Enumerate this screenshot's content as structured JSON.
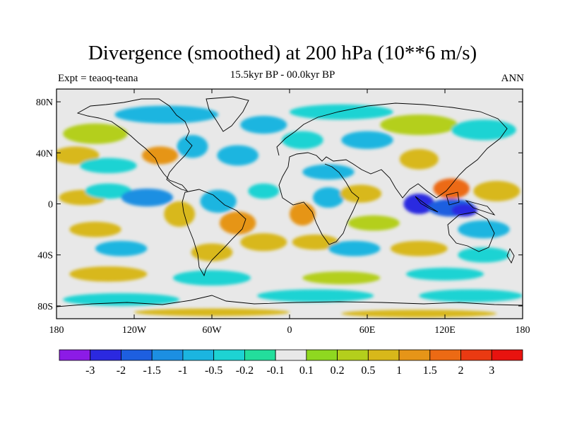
{
  "figure": {
    "title": "Divergence (smoothed) at 200 hPa (10**6 m/s)",
    "subtitle": "15.5kyr BP - 00.0kyr BP",
    "left_label": "Expt = teaoq-teana",
    "right_label": "ANN"
  },
  "map": {
    "lon_range": [
      -180,
      180
    ],
    "lat_range": [
      -90,
      90
    ],
    "lat_ticks": [
      {
        "value": 80,
        "label": "80N"
      },
      {
        "value": 40,
        "label": "40N"
      },
      {
        "value": 0,
        "label": "0"
      },
      {
        "value": -40,
        "label": "40S"
      },
      {
        "value": -80,
        "label": "80S"
      }
    ],
    "lon_ticks": [
      {
        "value": -180,
        "label": "180"
      },
      {
        "value": -120,
        "label": "120W"
      },
      {
        "value": -60,
        "label": "60W"
      },
      {
        "value": 0,
        "label": "0"
      },
      {
        "value": 60,
        "label": "60E"
      },
      {
        "value": 120,
        "label": "120E"
      },
      {
        "value": 180,
        "label": "180"
      }
    ],
    "anomalies": [
      {
        "lon": -150,
        "lat": 55,
        "rx": 25,
        "ry": 8,
        "value": 0.3
      },
      {
        "lon": -165,
        "lat": 38,
        "rx": 18,
        "ry": 7,
        "value": 0.8
      },
      {
        "lon": -140,
        "lat": 30,
        "rx": 22,
        "ry": 6,
        "value": -0.3
      },
      {
        "lon": -100,
        "lat": 38,
        "rx": 14,
        "ry": 7,
        "value": 1.2
      },
      {
        "lon": -75,
        "lat": 45,
        "rx": 12,
        "ry": 9,
        "value": -1.0
      },
      {
        "lon": -95,
        "lat": 70,
        "rx": 40,
        "ry": 7,
        "value": -0.6
      },
      {
        "lon": -20,
        "lat": 62,
        "rx": 18,
        "ry": 7,
        "value": -0.8
      },
      {
        "lon": 40,
        "lat": 72,
        "rx": 40,
        "ry": 6,
        "value": -0.5
      },
      {
        "lon": 100,
        "lat": 62,
        "rx": 30,
        "ry": 8,
        "value": 0.4
      },
      {
        "lon": 150,
        "lat": 58,
        "rx": 25,
        "ry": 8,
        "value": -0.5
      },
      {
        "lon": -40,
        "lat": 38,
        "rx": 16,
        "ry": 8,
        "value": -0.6
      },
      {
        "lon": 10,
        "lat": 50,
        "rx": 16,
        "ry": 7,
        "value": -0.4
      },
      {
        "lon": 60,
        "lat": 50,
        "rx": 20,
        "ry": 7,
        "value": -0.7
      },
      {
        "lon": 100,
        "lat": 35,
        "rx": 15,
        "ry": 8,
        "value": 0.5
      },
      {
        "lon": 30,
        "lat": 25,
        "rx": 20,
        "ry": 6,
        "value": -0.6
      },
      {
        "lon": -160,
        "lat": 5,
        "rx": 18,
        "ry": 6,
        "value": 0.7
      },
      {
        "lon": -140,
        "lat": 10,
        "rx": 18,
        "ry": 6,
        "value": -0.4
      },
      {
        "lon": -110,
        "lat": 5,
        "rx": 20,
        "ry": 7,
        "value": -1.5
      },
      {
        "lon": -85,
        "lat": -8,
        "rx": 12,
        "ry": 10,
        "value": 0.6
      },
      {
        "lon": -55,
        "lat": 2,
        "rx": 14,
        "ry": 9,
        "value": -1.0
      },
      {
        "lon": -40,
        "lat": -15,
        "rx": 14,
        "ry": 9,
        "value": 1.0
      },
      {
        "lon": -20,
        "lat": 10,
        "rx": 12,
        "ry": 6,
        "value": -0.5
      },
      {
        "lon": 10,
        "lat": -8,
        "rx": 10,
        "ry": 9,
        "value": 1.2
      },
      {
        "lon": 30,
        "lat": 5,
        "rx": 12,
        "ry": 8,
        "value": -0.8
      },
      {
        "lon": 55,
        "lat": 8,
        "rx": 16,
        "ry": 7,
        "value": 0.6
      },
      {
        "lon": 65,
        "lat": -15,
        "rx": 20,
        "ry": 6,
        "value": 0.4
      },
      {
        "lon": 100,
        "lat": 0,
        "rx": 12,
        "ry": 8,
        "value": -2.5
      },
      {
        "lon": 125,
        "lat": -3,
        "rx": 18,
        "ry": 7,
        "value": -1.6
      },
      {
        "lon": 135,
        "lat": -5,
        "rx": 10,
        "ry": 5,
        "value": -3.0
      },
      {
        "lon": 125,
        "lat": 12,
        "rx": 14,
        "ry": 8,
        "value": 1.8
      },
      {
        "lon": 160,
        "lat": 10,
        "rx": 18,
        "ry": 8,
        "value": 0.6
      },
      {
        "lon": 150,
        "lat": -20,
        "rx": 20,
        "ry": 7,
        "value": -0.6
      },
      {
        "lon": -150,
        "lat": -20,
        "rx": 20,
        "ry": 6,
        "value": 0.5
      },
      {
        "lon": -130,
        "lat": -35,
        "rx": 20,
        "ry": 6,
        "value": -0.8
      },
      {
        "lon": -60,
        "lat": -38,
        "rx": 16,
        "ry": 7,
        "value": 0.5
      },
      {
        "lon": -20,
        "lat": -30,
        "rx": 18,
        "ry": 7,
        "value": 0.5
      },
      {
        "lon": 20,
        "lat": -30,
        "rx": 18,
        "ry": 6,
        "value": 0.7
      },
      {
        "lon": 50,
        "lat": -35,
        "rx": 20,
        "ry": 6,
        "value": -0.8
      },
      {
        "lon": 100,
        "lat": -35,
        "rx": 22,
        "ry": 6,
        "value": 0.5
      },
      {
        "lon": 150,
        "lat": -40,
        "rx": 20,
        "ry": 6,
        "value": -0.5
      },
      {
        "lon": -140,
        "lat": -55,
        "rx": 30,
        "ry": 6,
        "value": 0.5
      },
      {
        "lon": -60,
        "lat": -58,
        "rx": 30,
        "ry": 6,
        "value": -0.5
      },
      {
        "lon": 40,
        "lat": -58,
        "rx": 30,
        "ry": 5,
        "value": 0.4
      },
      {
        "lon": 120,
        "lat": -55,
        "rx": 30,
        "ry": 5,
        "value": -0.4
      },
      {
        "lon": -130,
        "lat": -75,
        "rx": 45,
        "ry": 5,
        "value": -0.5
      },
      {
        "lon": 20,
        "lat": -72,
        "rx": 45,
        "ry": 5,
        "value": -0.4
      },
      {
        "lon": 140,
        "lat": -72,
        "rx": 40,
        "ry": 5,
        "value": -0.5
      },
      {
        "lon": -60,
        "lat": -85,
        "rx": 60,
        "ry": 3,
        "value": 0.5
      },
      {
        "lon": 100,
        "lat": -86,
        "rx": 60,
        "ry": 3,
        "value": 0.5
      }
    ]
  },
  "colorbar": {
    "bins": [
      {
        "color": "#8c1be6",
        "label": "-3"
      },
      {
        "color": "#2b29e0",
        "label": "-2"
      },
      {
        "color": "#1d5fe0",
        "label": "-1.5"
      },
      {
        "color": "#1c8fe2",
        "label": "-1"
      },
      {
        "color": "#1bb5e0",
        "label": "-0.5"
      },
      {
        "color": "#1dd3d3",
        "label": "-0.2"
      },
      {
        "color": "#23de9c",
        "label": "-0.1"
      },
      {
        "color": "#e8e8e8",
        "label": "0.1"
      },
      {
        "color": "#8fd820",
        "label": "0.2"
      },
      {
        "color": "#b4cf1c",
        "label": "0.5"
      },
      {
        "color": "#d8b81a",
        "label": "1"
      },
      {
        "color": "#e69518",
        "label": "1.5"
      },
      {
        "color": "#ec6a14",
        "label": "2"
      },
      {
        "color": "#ea3a12",
        "label": "3"
      },
      {
        "color": "#e8130f",
        "label": ""
      }
    ],
    "thresholds": [
      -3,
      -2,
      -1.5,
      -1,
      -0.5,
      -0.2,
      -0.1,
      0.1,
      0.2,
      0.5,
      1,
      1.5,
      2,
      3
    ]
  }
}
